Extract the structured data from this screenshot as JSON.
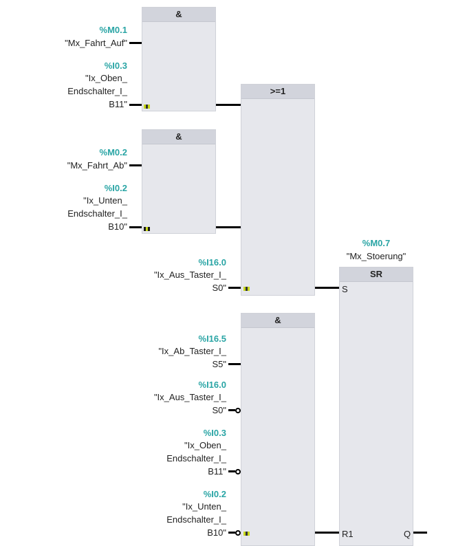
{
  "blocks": {
    "and1": {
      "title": "&"
    },
    "and2": {
      "title": "&"
    },
    "or1": {
      "title": ">=1"
    },
    "and3": {
      "title": "&"
    },
    "sr": {
      "title": "SR",
      "pin_s": "S",
      "pin_r1": "R1",
      "pin_q": "Q",
      "output": {
        "address": "%M0.7",
        "symbol": "\"Mx_Stoerung\""
      }
    }
  },
  "operands": {
    "and1_in1": {
      "address": "%M0.1",
      "symbol": [
        "\"Mx_Fahrt_Auf\""
      ]
    },
    "and1_in2": {
      "address": "%I0.3",
      "symbol": [
        "\"Ix_Oben_",
        "Endschalter_I_",
        "B11\""
      ]
    },
    "and2_in1": {
      "address": "%M0.2",
      "symbol": [
        "\"Mx_Fahrt_Ab\""
      ]
    },
    "and2_in2": {
      "address": "%I0.2",
      "symbol": [
        "\"Ix_Unten_",
        "Endschalter_I_",
        "B10\""
      ]
    },
    "or1_in3": {
      "address": "%I16.0",
      "symbol": [
        "\"Ix_Aus_Taster_I_",
        "S0\""
      ]
    },
    "and3_in1": {
      "address": "%I16.5",
      "symbol": [
        "\"Ix_Ab_Taster_I_",
        "S5\""
      ]
    },
    "and3_in2": {
      "address": "%I16.0",
      "symbol": [
        "\"Ix_Aus_Taster_I_",
        "S0\""
      ]
    },
    "and3_in3": {
      "address": "%I0.3",
      "symbol": [
        "\"Ix_Oben_",
        "Endschalter_I_",
        "B11\""
      ]
    },
    "and3_in4": {
      "address": "%I0.2",
      "symbol": [
        "\"Ix_Unten_",
        "Endschalter_I_",
        "B10\""
      ]
    }
  },
  "colors": {
    "address": "#2aa5a5",
    "block_body": "#e6e7ec",
    "block_header": "#d2d4dc"
  }
}
